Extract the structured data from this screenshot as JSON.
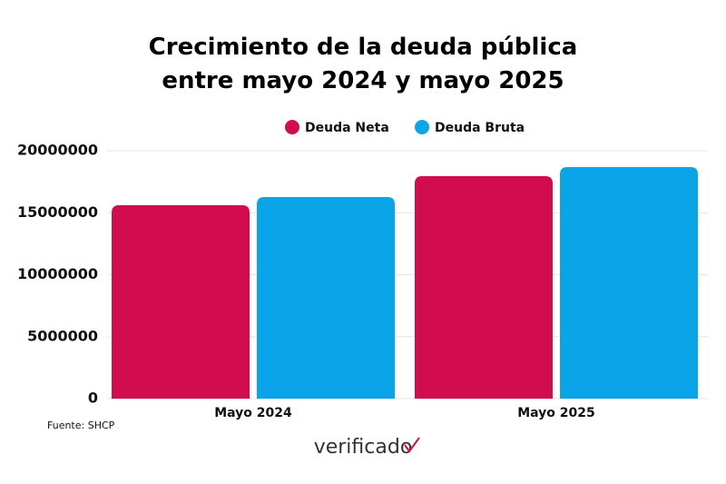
{
  "chart_data": {
    "type": "bar",
    "title": "Crecimiento de la deuda pública entre mayo 2024 y mayo 2025",
    "categories": [
      "Mayo 2024",
      "Mayo 2025"
    ],
    "series": [
      {
        "name": "Deuda Neta",
        "color": "#d10d4f",
        "values": [
          15600000,
          17950000
        ]
      },
      {
        "name": "Deuda Bruta",
        "color": "#0aa5e8",
        "values": [
          16260000,
          18680000
        ]
      }
    ],
    "ylim": [
      0,
      20000000
    ],
    "yticks": [
      0,
      5000000,
      10000000,
      15000000,
      20000000
    ],
    "grid": true,
    "legend": "top",
    "source": "Fuente: SHCP",
    "logo": "verificado"
  }
}
